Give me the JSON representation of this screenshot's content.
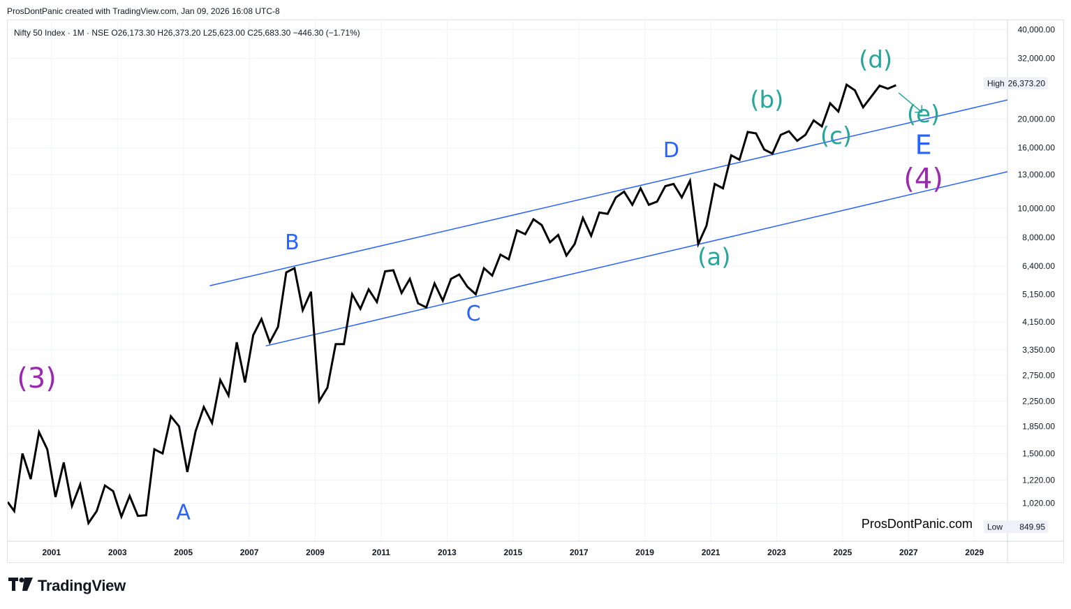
{
  "header": {
    "attribution": "ProsDontPanic created with TradingView.com, Jan 09, 2026 16:08 UTC-8"
  },
  "footer": {
    "brand_name": "TradingView",
    "logo_icon": "tradingview-logo-icon"
  },
  "chart_data": {
    "type": "line",
    "scale": "log",
    "legend": "Nifty 50 Index · 1M · NSE  O26,173.30  H26,373.20  L25,623.00  C25,683.30  −446.30 (−1.71%)",
    "watermark": "ProsDontPanic.com",
    "xlim": [
      1999.67,
      2030.0
    ],
    "ylim": [
      760,
      43000
    ],
    "x_ticks": [
      "2001",
      "2003",
      "2005",
      "2007",
      "2009",
      "2011",
      "2013",
      "2015",
      "2017",
      "2019",
      "2021",
      "2023",
      "2025",
      "2027",
      "2029"
    ],
    "y_ticks": [
      {
        "value": 40000,
        "label": "40,000.00"
      },
      {
        "value": 32000,
        "label": "32,000.00"
      },
      {
        "value": 20000,
        "label": "20,000.00"
      },
      {
        "value": 16000,
        "label": "16,000.00"
      },
      {
        "value": 13000,
        "label": "13,000.00"
      },
      {
        "value": 10000,
        "label": "10,000.00"
      },
      {
        "value": 8000,
        "label": "8,000.00"
      },
      {
        "value": 6400,
        "label": "6,400.00"
      },
      {
        "value": 5150,
        "label": "5,150.00"
      },
      {
        "value": 4150,
        "label": "4,150.00"
      },
      {
        "value": 3350,
        "label": "3,350.00"
      },
      {
        "value": 2750,
        "label": "2,750.00"
      },
      {
        "value": 2250,
        "label": "2,250.00"
      },
      {
        "value": 1850,
        "label": "1,850.00"
      },
      {
        "value": 1500,
        "label": "1,500.00"
      },
      {
        "value": 1220,
        "label": "1,220.00"
      },
      {
        "value": 1020,
        "label": "1,020.00"
      }
    ],
    "high_label": {
      "tag": "High",
      "value": 26373.2,
      "text": "26,373.20"
    },
    "low_label": {
      "tag": "Low",
      "value": 849.95,
      "text": "849.95"
    },
    "series": [
      {
        "name": "Nifty 50 Index",
        "color": "#000000",
        "points": [
          [
            1999.67,
            1030
          ],
          [
            1999.87,
            960
          ],
          [
            2000.12,
            1500
          ],
          [
            2000.37,
            1230
          ],
          [
            2000.62,
            1770
          ],
          [
            2000.87,
            1550
          ],
          [
            2001.12,
            1070
          ],
          [
            2001.37,
            1400
          ],
          [
            2001.62,
            1000
          ],
          [
            2001.87,
            1180
          ],
          [
            2002.12,
            875
          ],
          [
            2002.37,
            960
          ],
          [
            2002.62,
            1170
          ],
          [
            2002.87,
            1120
          ],
          [
            2003.12,
            920
          ],
          [
            2003.37,
            1080
          ],
          [
            2003.62,
            925
          ],
          [
            2003.87,
            930
          ],
          [
            2004.12,
            1550
          ],
          [
            2004.37,
            1500
          ],
          [
            2004.62,
            2000
          ],
          [
            2004.87,
            1850
          ],
          [
            2005.12,
            1300
          ],
          [
            2005.37,
            1780
          ],
          [
            2005.62,
            2150
          ],
          [
            2005.87,
            1900
          ],
          [
            2006.12,
            2650
          ],
          [
            2006.37,
            2350
          ],
          [
            2006.62,
            3550
          ],
          [
            2006.87,
            2600
          ],
          [
            2007.12,
            3750
          ],
          [
            2007.37,
            4250
          ],
          [
            2007.62,
            3550
          ],
          [
            2007.87,
            4000
          ],
          [
            2008.12,
            6100
          ],
          [
            2008.37,
            6300
          ],
          [
            2008.62,
            4550
          ],
          [
            2008.87,
            5250
          ],
          [
            2009.12,
            2250
          ],
          [
            2009.37,
            2500
          ],
          [
            2009.62,
            3500
          ],
          [
            2009.87,
            3500
          ],
          [
            2010.12,
            5150
          ],
          [
            2010.37,
            4600
          ],
          [
            2010.62,
            5350
          ],
          [
            2010.87,
            4850
          ],
          [
            2011.12,
            6150
          ],
          [
            2011.37,
            6200
          ],
          [
            2011.62,
            5200
          ],
          [
            2011.87,
            5800
          ],
          [
            2012.12,
            4800
          ],
          [
            2012.37,
            4650
          ],
          [
            2012.62,
            5600
          ],
          [
            2012.87,
            4900
          ],
          [
            2013.12,
            5800
          ],
          [
            2013.37,
            6000
          ],
          [
            2013.62,
            5450
          ],
          [
            2013.87,
            5150
          ],
          [
            2014.12,
            6300
          ],
          [
            2014.37,
            5950
          ],
          [
            2014.62,
            7000
          ],
          [
            2014.87,
            6750
          ],
          [
            2015.12,
            8450
          ],
          [
            2015.37,
            8200
          ],
          [
            2015.62,
            9200
          ],
          [
            2015.87,
            8800
          ],
          [
            2016.12,
            7700
          ],
          [
            2016.37,
            8150
          ],
          [
            2016.62,
            6950
          ],
          [
            2016.87,
            7600
          ],
          [
            2017.12,
            9300
          ],
          [
            2017.37,
            8100
          ],
          [
            2017.62,
            9700
          ],
          [
            2017.87,
            9600
          ],
          [
            2018.12,
            10900
          ],
          [
            2018.37,
            11400
          ],
          [
            2018.62,
            10300
          ],
          [
            2018.87,
            11700
          ],
          [
            2019.12,
            10300
          ],
          [
            2019.37,
            10550
          ],
          [
            2019.62,
            11900
          ],
          [
            2019.87,
            12100
          ],
          [
            2020.12,
            10900
          ],
          [
            2020.37,
            12400
          ],
          [
            2020.62,
            7600
          ],
          [
            2020.87,
            8750
          ],
          [
            2021.12,
            12100
          ],
          [
            2021.37,
            11700
          ],
          [
            2021.62,
            15100
          ],
          [
            2021.87,
            14600
          ],
          [
            2022.12,
            18100
          ],
          [
            2022.37,
            17900
          ],
          [
            2022.62,
            15800
          ],
          [
            2022.87,
            15300
          ],
          [
            2023.12,
            17700
          ],
          [
            2023.37,
            18200
          ],
          [
            2023.62,
            16900
          ],
          [
            2023.87,
            17700
          ],
          [
            2024.12,
            19800
          ],
          [
            2024.37,
            18900
          ],
          [
            2024.62,
            22600
          ],
          [
            2024.87,
            21200
          ],
          [
            2025.12,
            26100
          ],
          [
            2025.37,
            25000
          ],
          [
            2025.62,
            21900
          ],
          [
            2025.87,
            23800
          ],
          [
            2026.12,
            25900
          ],
          [
            2026.37,
            25300
          ],
          [
            2026.62,
            26000
          ]
        ]
      }
    ],
    "trendlines": [
      {
        "name": "upper-channel",
        "color": "#2962ff",
        "points": [
          [
            2005.8,
            5500
          ],
          [
            2030.0,
            23200
          ]
        ]
      },
      {
        "name": "lower-channel",
        "color": "#2962ff",
        "points": [
          [
            2007.5,
            3450
          ],
          [
            2030.0,
            13300
          ]
        ]
      }
    ],
    "projection_arrow": {
      "color": "#26a69a",
      "points": [
        [
          2026.7,
          24500
        ],
        [
          2027.4,
          21100
        ]
      ]
    },
    "annotations": [
      {
        "text": "(3)",
        "x": 2000.55,
        "y": 2500,
        "color": "#9c27b0",
        "size": 40
      },
      {
        "text": "A",
        "x": 2005.0,
        "y": 900,
        "color": "#2962ff",
        "size": 30
      },
      {
        "text": "B",
        "x": 2008.3,
        "y": 7300,
        "color": "#2962ff",
        "size": 30
      },
      {
        "text": "C",
        "x": 2013.8,
        "y": 4200,
        "color": "#2962ff",
        "size": 30
      },
      {
        "text": "D",
        "x": 2019.8,
        "y": 14900,
        "color": "#2962ff",
        "size": 30
      },
      {
        "text": "E",
        "x": 2027.45,
        "y": 15250,
        "color": "#2962ff",
        "size": 38
      },
      {
        "text": "(4)",
        "x": 2027.45,
        "y": 11700,
        "color": "#9c27b0",
        "size": 40
      },
      {
        "text": "(a)",
        "x": 2021.1,
        "y": 6450,
        "color": "#26a69a",
        "size": 34
      },
      {
        "text": "(b)",
        "x": 2022.7,
        "y": 21800,
        "color": "#26a69a",
        "size": 34
      },
      {
        "text": "(c)",
        "x": 2024.8,
        "y": 16500,
        "color": "#26a69a",
        "size": 34
      },
      {
        "text": "(d)",
        "x": 2026.0,
        "y": 29800,
        "color": "#26a69a",
        "size": 34
      },
      {
        "text": "(e)",
        "x": 2027.45,
        "y": 19500,
        "color": "#26a69a",
        "size": 34
      }
    ]
  }
}
